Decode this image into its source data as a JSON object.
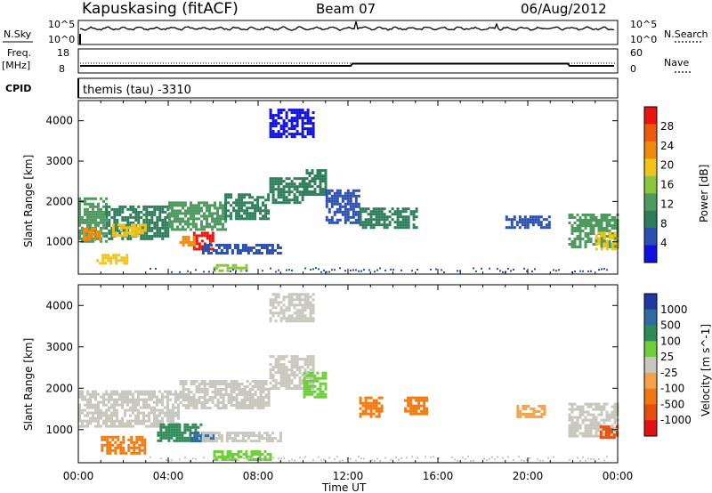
{
  "header": {
    "station": "Kapuskasing (fitACF)",
    "beam": "Beam 07",
    "date": "06/Aug/2012"
  },
  "info_panels": {
    "nsky_label": "N.Sky",
    "nsky_ticks": [
      "10^5",
      "10^0"
    ],
    "nsearch_label": "N.Search",
    "nsearch_ticks": [
      "10^5",
      "10^0"
    ],
    "freq_label": "Freq.",
    "freq_unit": "[MHz]",
    "freq_ticks": [
      "18",
      "8"
    ],
    "nave_label": "Nave",
    "nave_ticks": [
      "60",
      "0"
    ],
    "cpid_label": "CPID",
    "cpid_value": "themis (tau) -3310"
  },
  "colors": {
    "power": [
      "#1010e0",
      "#2a4fb0",
      "#2e7d5a",
      "#4f9a60",
      "#8cc63f",
      "#f0c419",
      "#f08a0c",
      "#ef5a0a",
      "#e8140e"
    ],
    "velocity": {
      "pos_high": "#1e3aa0",
      "pos_mid": "#2e6ba0",
      "pos_low": "#2e8b57",
      "pos_min": "#6fcf3a",
      "gs": "#c7c7bd",
      "neg_min": "#f3a14a",
      "neg_low": "#f07a10",
      "neg_mid": "#e64d10",
      "neg_high": "#e01212"
    }
  },
  "chart_data": [
    {
      "type": "heatmap",
      "panel": "power",
      "ylabel": "Slant Range [km]",
      "ylim": [
        200,
        4500
      ],
      "yticks": [
        1000,
        2000,
        3000,
        4000
      ],
      "xlim": [
        0,
        24
      ],
      "colorbar_label": "Power [dB]",
      "colorbar_ticks": [
        "28",
        "24",
        "20",
        "16",
        "12",
        "8",
        "4"
      ],
      "regions": [
        {
          "t0": 0.0,
          "t1": 1.2,
          "r0": 1000,
          "r1": 2100,
          "level": 3
        },
        {
          "t0": 0.2,
          "t1": 1.0,
          "r0": 1050,
          "r1": 1350,
          "level": 6
        },
        {
          "t0": 1.2,
          "t1": 4.0,
          "r0": 1100,
          "r1": 1900,
          "level": 2
        },
        {
          "t0": 1.5,
          "t1": 3.0,
          "r0": 1150,
          "r1": 1450,
          "level": 5
        },
        {
          "t0": 0.8,
          "t1": 2.2,
          "r0": 450,
          "r1": 700,
          "level": 5
        },
        {
          "t0": 4.0,
          "t1": 6.5,
          "r0": 1300,
          "r1": 2000,
          "level": 3
        },
        {
          "t0": 5.1,
          "t1": 6.0,
          "r0": 850,
          "r1": 1250,
          "level": 8
        },
        {
          "t0": 4.5,
          "t1": 5.2,
          "r0": 900,
          "r1": 1150,
          "level": 6
        },
        {
          "t0": 6.5,
          "t1": 8.5,
          "r0": 1550,
          "r1": 2200,
          "level": 2
        },
        {
          "t0": 8.5,
          "t1": 10.0,
          "r0": 2000,
          "r1": 2600,
          "level": 2
        },
        {
          "t0": 5.5,
          "t1": 9.0,
          "r0": 750,
          "r1": 950,
          "level": 1
        },
        {
          "t0": 10.0,
          "t1": 11.0,
          "r0": 2200,
          "r1": 2800,
          "level": 2
        },
        {
          "t0": 11.0,
          "t1": 12.5,
          "r0": 1500,
          "r1": 2300,
          "level": 1
        },
        {
          "t0": 12.5,
          "t1": 15.0,
          "r0": 1350,
          "r1": 1850,
          "level": 2
        },
        {
          "t0": 8.5,
          "t1": 10.5,
          "r0": 3600,
          "r1": 4300,
          "level": 0
        },
        {
          "t0": 6.0,
          "t1": 7.5,
          "r0": 300,
          "r1": 450,
          "level": 4
        },
        {
          "t0": 19.0,
          "t1": 21.0,
          "r0": 1350,
          "r1": 1650,
          "level": 1
        },
        {
          "t0": 21.8,
          "t1": 24.0,
          "r0": 850,
          "r1": 1700,
          "level": 3
        },
        {
          "t0": 23.0,
          "t1": 24.0,
          "r0": 800,
          "r1": 1250,
          "level": 5
        }
      ]
    },
    {
      "type": "heatmap",
      "panel": "velocity",
      "ylabel": "Slant Range [km]",
      "xlabel": "Time UT",
      "ylim": [
        200,
        4500
      ],
      "yticks": [
        1000,
        2000,
        3000,
        4000
      ],
      "xlim": [
        0,
        24
      ],
      "xticks": [
        "00:00",
        "04:00",
        "08:00",
        "12:00",
        "16:00",
        "20:00",
        "00:00"
      ],
      "colorbar_label": "Velocity [m s^-1]",
      "colorbar_ticks": [
        "1000",
        "500",
        "100",
        "25",
        "-25",
        "-100",
        "-500",
        "-1000"
      ],
      "regions": [
        {
          "t0": 0.0,
          "t1": 4.5,
          "r0": 1100,
          "r1": 1950,
          "color": "gs"
        },
        {
          "t0": 4.5,
          "t1": 8.5,
          "r0": 1500,
          "r1": 2200,
          "color": "gs"
        },
        {
          "t0": 8.5,
          "t1": 10.5,
          "r0": 2000,
          "r1": 2800,
          "color": "gs"
        },
        {
          "t0": 1.0,
          "t1": 3.0,
          "r0": 450,
          "r1": 850,
          "color": "neg_low"
        },
        {
          "t0": 3.5,
          "t1": 5.5,
          "r0": 700,
          "r1": 1150,
          "color": "pos_low"
        },
        {
          "t0": 5.0,
          "t1": 6.0,
          "r0": 700,
          "r1": 950,
          "color": "pos_mid"
        },
        {
          "t0": 5.5,
          "t1": 9.0,
          "r0": 750,
          "r1": 950,
          "color": "gs"
        },
        {
          "t0": 6.0,
          "t1": 8.5,
          "r0": 250,
          "r1": 500,
          "color": "pos_min"
        },
        {
          "t0": 10.0,
          "t1": 11.0,
          "r0": 1800,
          "r1": 2400,
          "color": "pos_min"
        },
        {
          "t0": 12.5,
          "t1": 13.5,
          "r0": 1300,
          "r1": 1800,
          "color": "neg_low"
        },
        {
          "t0": 14.5,
          "t1": 15.5,
          "r0": 1400,
          "r1": 1800,
          "color": "neg_low"
        },
        {
          "t0": 8.5,
          "t1": 10.5,
          "r0": 3600,
          "r1": 4300,
          "color": "gs"
        },
        {
          "t0": 19.5,
          "t1": 20.8,
          "r0": 1300,
          "r1": 1600,
          "color": "neg_min"
        },
        {
          "t0": 21.8,
          "t1": 24.0,
          "r0": 850,
          "r1": 1650,
          "color": "gs"
        },
        {
          "t0": 23.2,
          "t1": 24.0,
          "r0": 800,
          "r1": 1100,
          "color": "neg_mid"
        }
      ]
    }
  ]
}
